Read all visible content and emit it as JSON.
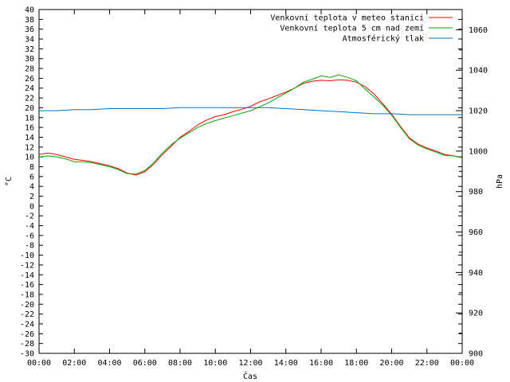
{
  "chart_data": {
    "type": "line",
    "xlabel": "Čas",
    "ylabel": "°C",
    "y2label": "hPa",
    "x_ticks": [
      "00:00",
      "02:00",
      "04:00",
      "06:00",
      "08:00",
      "10:00",
      "12:00",
      "14:00",
      "16:00",
      "18:00",
      "20:00",
      "22:00",
      "00:00"
    ],
    "xlim": [
      0,
      24
    ],
    "ylim": [
      -30,
      40
    ],
    "y_ticks": [
      -30,
      -28,
      -26,
      -24,
      -22,
      -20,
      -18,
      -16,
      -14,
      -12,
      -10,
      -8,
      -6,
      -4,
      -2,
      0,
      2,
      4,
      6,
      8,
      10,
      12,
      14,
      16,
      18,
      20,
      22,
      24,
      26,
      28,
      30,
      32,
      34,
      36,
      38,
      40
    ],
    "y2lim": [
      900,
      1070
    ],
    "y2_ticks": [
      900,
      920,
      940,
      960,
      980,
      1000,
      1020,
      1040,
      1060
    ],
    "grid": false,
    "legend_position": "top-right",
    "series": [
      {
        "name": "Venkovní teplota v meteo stanici",
        "axis": "left",
        "color": "#ff0000",
        "x": [
          0,
          0.5,
          1,
          1.5,
          2,
          2.5,
          3,
          3.5,
          4,
          4.5,
          5,
          5.5,
          6,
          6.5,
          7,
          7.5,
          8,
          8.5,
          9,
          9.5,
          10,
          10.5,
          11,
          11.5,
          12,
          12.5,
          13,
          13.5,
          14,
          14.5,
          15,
          15.5,
          16,
          16.5,
          17,
          17.5,
          18,
          18.5,
          19,
          19.5,
          20,
          20.5,
          21,
          21.5,
          22,
          22.5,
          23,
          23.5,
          24
        ],
        "values": [
          10.5,
          10.8,
          10.5,
          10,
          9.5,
          9.3,
          9,
          8.6,
          8.2,
          7.6,
          6.7,
          6.3,
          7,
          8.5,
          10.5,
          12.2,
          14,
          15.2,
          16.5,
          17.5,
          18.2,
          18.6,
          19.2,
          19.7,
          20.3,
          21.2,
          21.8,
          22.5,
          23.2,
          24,
          25,
          25.4,
          25.6,
          25.5,
          25.7,
          25.6,
          25.2,
          24.3,
          22.8,
          20.8,
          18.7,
          16.2,
          13.9,
          12.6,
          11.8,
          11.2,
          10.5,
          10.2,
          9.9
        ]
      },
      {
        "name": "Venkovní teplota 5 cm nad zemí",
        "axis": "left",
        "color": "#00aa00",
        "x": [
          0,
          0.5,
          1,
          1.5,
          2,
          2.5,
          3,
          3.5,
          4,
          4.5,
          5,
          5.5,
          6,
          6.5,
          7,
          7.5,
          8,
          8.5,
          9,
          9.5,
          10,
          10.5,
          11,
          11.5,
          12,
          12.5,
          13,
          13.5,
          14,
          14.5,
          15,
          15.5,
          16,
          16.5,
          17,
          17.5,
          18,
          18.5,
          19,
          19.5,
          20,
          20.5,
          21,
          21.5,
          22,
          22.5,
          23,
          23.5,
          24
        ],
        "values": [
          10,
          10.2,
          10,
          9.6,
          9,
          9,
          8.8,
          8.4,
          8,
          7.4,
          6.6,
          6.5,
          7.2,
          8.8,
          10.8,
          12.5,
          13.8,
          14.9,
          16,
          16.8,
          17.4,
          17.9,
          18.4,
          18.9,
          19.4,
          20.2,
          21,
          22,
          23,
          24,
          25.2,
          25.8,
          26.5,
          26.2,
          26.7,
          26.2,
          25.5,
          23.8,
          22.2,
          20.5,
          18.5,
          16,
          13.7,
          12.4,
          11.6,
          11,
          10.3,
          10.2,
          9.8
        ]
      },
      {
        "name": "Atmosférický tlak",
        "axis": "right",
        "color": "#0070c0",
        "x": [
          0,
          1,
          2,
          3,
          4,
          5,
          6,
          7,
          8,
          9,
          10,
          11,
          12,
          13,
          14,
          15,
          16,
          17,
          18,
          19,
          20,
          21,
          22,
          23,
          24
        ],
        "values": [
          1020,
          1020,
          1020.5,
          1020.5,
          1021,
          1021,
          1021,
          1021,
          1021.5,
          1021.5,
          1021.5,
          1021.5,
          1021.5,
          1021.5,
          1021,
          1020.5,
          1020,
          1019.5,
          1019,
          1018.5,
          1018.5,
          1018,
          1018,
          1018,
          1018
        ]
      }
    ]
  }
}
